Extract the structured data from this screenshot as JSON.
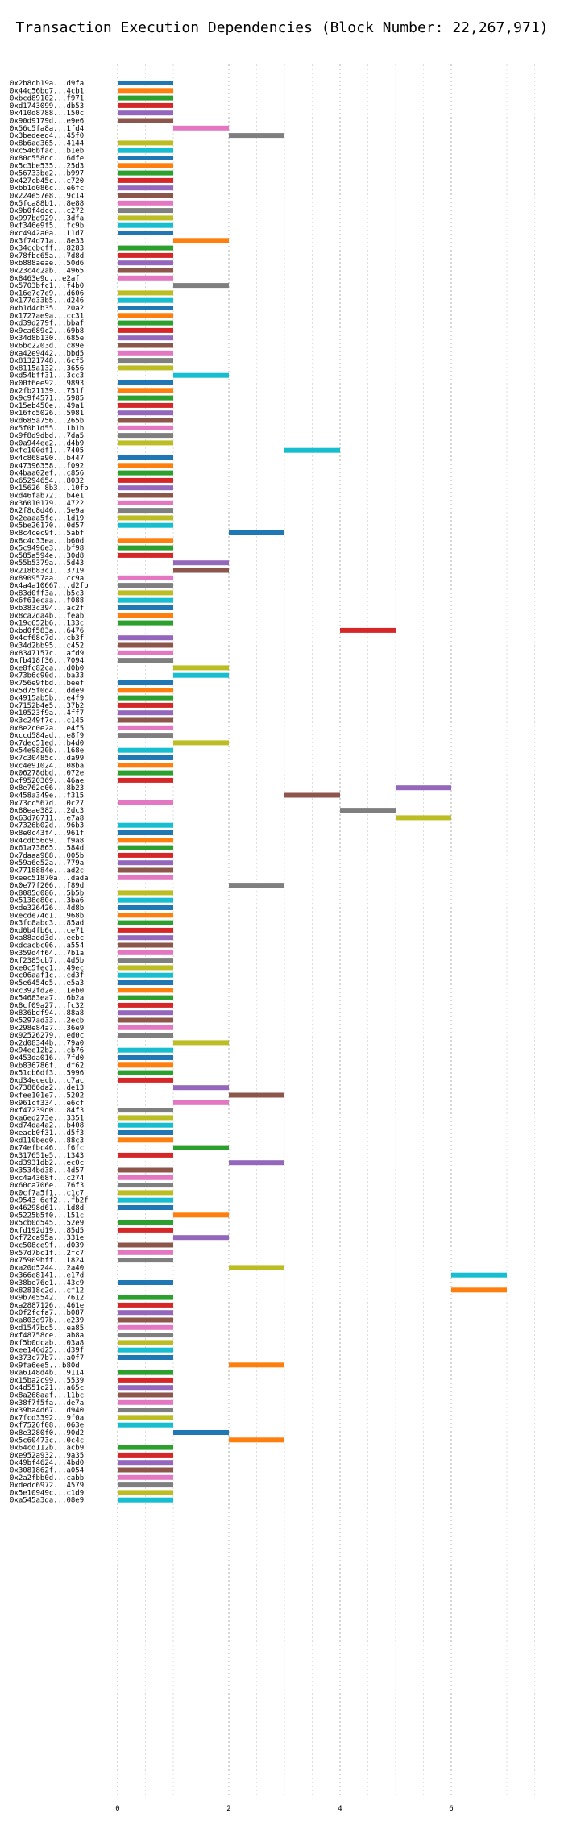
{
  "chart_data": {
    "type": "bar",
    "orientation": "horizontal",
    "title": "Transaction Execution Dependencies (Block Number: 22,267,971)",
    "xlabel": "",
    "ylabel": "",
    "xlim": [
      0,
      7.5
    ],
    "xticks": [
      0,
      2,
      4,
      6
    ],
    "grid": true,
    "colors": [
      "#1f77b4",
      "#ff7f0e",
      "#2ca02c",
      "#d62728",
      "#9467bd",
      "#8c564b",
      "#e377c2",
      "#7f7f7f",
      "#bcbd22",
      "#17becf"
    ],
    "transactions": [
      {
        "label": "0x2b8cb19a...d9fa",
        "start": 0,
        "end": 1
      },
      {
        "label": "0x44c56bd7...4cb1",
        "start": 0,
        "end": 1
      },
      {
        "label": "0xbcd89102...f971",
        "start": 0,
        "end": 1
      },
      {
        "label": "0xd1743099...db53",
        "start": 0,
        "end": 1
      },
      {
        "label": "0x410d8788...150c",
        "start": 0,
        "end": 1
      },
      {
        "label": "0x90d9179d...e9e6",
        "start": 0,
        "end": 1
      },
      {
        "label": "0x56c5fa8a...1fd4",
        "start": 1,
        "end": 2
      },
      {
        "label": "0x3bedeed4...45f0",
        "start": 2,
        "end": 3
      },
      {
        "label": "0x8b6ad365...4144",
        "start": 0,
        "end": 1
      },
      {
        "label": "0xc546bfac...b1eb",
        "start": 0,
        "end": 1
      },
      {
        "label": "0x80c558dc...6dfe",
        "start": 0,
        "end": 1
      },
      {
        "label": "0x5c3be535...25d3",
        "start": 0,
        "end": 1
      },
      {
        "label": "0x56733be2...b997",
        "start": 0,
        "end": 1
      },
      {
        "label": "0x427cb45c...c720",
        "start": 0,
        "end": 1
      },
      {
        "label": "0xbb1d086c...e6fc",
        "start": 0,
        "end": 1
      },
      {
        "label": "0x224e57e8...9c14",
        "start": 0,
        "end": 1
      },
      {
        "label": "0x5fca88b1...8e88",
        "start": 0,
        "end": 1
      },
      {
        "label": "0x9b0f4dcc...c272",
        "start": 0,
        "end": 1
      },
      {
        "label": "0x997bd929...3dfa",
        "start": 0,
        "end": 1
      },
      {
        "label": "0xf346e9f5...fc9b",
        "start": 0,
        "end": 1
      },
      {
        "label": "0xc4942a0a...11d7",
        "start": 0,
        "end": 1
      },
      {
        "label": "0x3f74d71a...8e33",
        "start": 1,
        "end": 2
      },
      {
        "label": "0x34ccbcff...8283",
        "start": 0,
        "end": 1
      },
      {
        "label": "0x78fbc65a...7d8d",
        "start": 0,
        "end": 1
      },
      {
        "label": "0xb888aeae...50d6",
        "start": 0,
        "end": 1
      },
      {
        "label": "0x23c4c2ab...4965",
        "start": 0,
        "end": 1
      },
      {
        "label": "0x8463e9d...e2af",
        "start": 0,
        "end": 1
      },
      {
        "label": "0x5703bfc1...f4b0",
        "start": 1,
        "end": 2
      },
      {
        "label": "0x16e7c7e9...d606",
        "start": 0,
        "end": 1
      },
      {
        "label": "0x177d33b5...d246",
        "start": 0,
        "end": 1
      },
      {
        "label": "0xb1d4cb35...20a2",
        "start": 0,
        "end": 1
      },
      {
        "label": "0x1727ae9a...cc31",
        "start": 0,
        "end": 1
      },
      {
        "label": "0xd39d279f...bbaf",
        "start": 0,
        "end": 1
      },
      {
        "label": "0x9ca689c2...69b8",
        "start": 0,
        "end": 1
      },
      {
        "label": "0x34d8b130...685e",
        "start": 0,
        "end": 1
      },
      {
        "label": "0x6bc2203d...c89e",
        "start": 0,
        "end": 1
      },
      {
        "label": "0xa42e9442...bbd5",
        "start": 0,
        "end": 1
      },
      {
        "label": "0x81321748...6cf5",
        "start": 0,
        "end": 1
      },
      {
        "label": "0x8115a132...3656",
        "start": 0,
        "end": 1
      },
      {
        "label": "0xd54bff31...3cc3",
        "start": 1,
        "end": 2
      },
      {
        "label": "0x00f6ee92...9893",
        "start": 0,
        "end": 1
      },
      {
        "label": "0x2fb21139...751f",
        "start": 0,
        "end": 1
      },
      {
        "label": "0x9c9f4571...5985",
        "start": 0,
        "end": 1
      },
      {
        "label": "0x15eb450e...49a1",
        "start": 0,
        "end": 1
      },
      {
        "label": "0x16fc5026...5981",
        "start": 0,
        "end": 1
      },
      {
        "label": "0xd685a756...265b",
        "start": 0,
        "end": 1
      },
      {
        "label": "0x5f0b1d55...1b1b",
        "start": 0,
        "end": 1
      },
      {
        "label": "0x9f8d9dbd...7da5",
        "start": 0,
        "end": 1
      },
      {
        "label": "0x0a944ee2...d4b9",
        "start": 0,
        "end": 1
      },
      {
        "label": "0xfc100df1...7405",
        "start": 3,
        "end": 4
      },
      {
        "label": "0x4c868a90...b447",
        "start": 0,
        "end": 1
      },
      {
        "label": "0x47396358...f092",
        "start": 0,
        "end": 1
      },
      {
        "label": "0x4baa02ef...c856",
        "start": 0,
        "end": 1
      },
      {
        "label": "0x65294654...8032",
        "start": 0,
        "end": 1
      },
      {
        "label": "0x15626 8b3...10fb",
        "start": 0,
        "end": 1
      },
      {
        "label": "0xd46fab72...b4e1",
        "start": 0,
        "end": 1
      },
      {
        "label": "0x36010179...4722",
        "start": 0,
        "end": 1
      },
      {
        "label": "0x2f8c8d46...5e9a",
        "start": 0,
        "end": 1
      },
      {
        "label": "0x2eaaa5fc...1d19",
        "start": 0,
        "end": 1
      },
      {
        "label": "0x5be26170...0d57",
        "start": 0,
        "end": 1
      },
      {
        "label": "0x8c4cec9f...5abf",
        "start": 2,
        "end": 3
      },
      {
        "label": "0x8c4c33ea...b60d",
        "start": 0,
        "end": 1
      },
      {
        "label": "0x5c9496e3...bf98",
        "start": 0,
        "end": 1
      },
      {
        "label": "0x585a594e...30d8",
        "start": 0,
        "end": 1
      },
      {
        "label": "0x55b5379a...5d43",
        "start": 1,
        "end": 2
      },
      {
        "label": "0x218b83c1...3719",
        "start": 1,
        "end": 2
      },
      {
        "label": "0x890957aa...cc9a",
        "start": 0,
        "end": 1
      },
      {
        "label": "0x4a4a10667...d2fb",
        "start": 0,
        "end": 1
      },
      {
        "label": "0x83d0ff3a...b5c3",
        "start": 0,
        "end": 1
      },
      {
        "label": "0x6f61ecaa...f088",
        "start": 0,
        "end": 1
      },
      {
        "label": "0xb383c394...ac2f",
        "start": 0,
        "end": 1
      },
      {
        "label": "0x8ca2da4b...feab",
        "start": 0,
        "end": 1
      },
      {
        "label": "0x19c652b6...133c",
        "start": 0,
        "end": 1
      },
      {
        "label": "0xbd0f583a...6476",
        "start": 4,
        "end": 5
      },
      {
        "label": "0x4cf68c7d...cb3f",
        "start": 0,
        "end": 1
      },
      {
        "label": "0x34d2bb95...c452",
        "start": 0,
        "end": 1
      },
      {
        "label": "0x8347157c...afd9",
        "start": 0,
        "end": 1
      },
      {
        "label": "0xfb418f36...7094",
        "start": 0,
        "end": 1
      },
      {
        "label": "0xe8fc82ca...d0b0",
        "start": 1,
        "end": 2
      },
      {
        "label": "0x73b6c90d...ba33",
        "start": 1,
        "end": 2
      },
      {
        "label": "0x756e9fbd...beef",
        "start": 0,
        "end": 1
      },
      {
        "label": "0x5d75f0d4...dde9",
        "start": 0,
        "end": 1
      },
      {
        "label": "0x4915ab5b...e4f9",
        "start": 0,
        "end": 1
      },
      {
        "label": "0x7152b4e5...37b2",
        "start": 0,
        "end": 1
      },
      {
        "label": "0x10523f9a...4ff7",
        "start": 0,
        "end": 1
      },
      {
        "label": "0x3c249f7c...c145",
        "start": 0,
        "end": 1
      },
      {
        "label": "0x8e2c0e2a...e4f5",
        "start": 0,
        "end": 1
      },
      {
        "label": "0xccd584ad...e8f9",
        "start": 0,
        "end": 1
      },
      {
        "label": "0x7dec51ed...b4d0",
        "start": 1,
        "end": 2
      },
      {
        "label": "0x54e9820b...168e",
        "start": 0,
        "end": 1
      },
      {
        "label": "0x7c30485c...da99",
        "start": 0,
        "end": 1
      },
      {
        "label": "0xc4e91024...08ba",
        "start": 0,
        "end": 1
      },
      {
        "label": "0x06278dbd...072e",
        "start": 0,
        "end": 1
      },
      {
        "label": "0xf9520369...46ae",
        "start": 0,
        "end": 1
      },
      {
        "label": "0x8e762e06...8b23",
        "start": 5,
        "end": 6
      },
      {
        "label": "0x458a349e...f315",
        "start": 3,
        "end": 4
      },
      {
        "label": "0x73cc567d...0c27",
        "start": 0,
        "end": 1
      },
      {
        "label": "0x88eae382...2dc3",
        "start": 4,
        "end": 5
      },
      {
        "label": "0x63d76711...e7a8",
        "start": 5,
        "end": 6
      },
      {
        "label": "0x7326b02d...96b3",
        "start": 0,
        "end": 1
      },
      {
        "label": "0x8e0c43f4...961f",
        "start": 0,
        "end": 1
      },
      {
        "label": "0x4cdb56d9...f9a8",
        "start": 0,
        "end": 1
      },
      {
        "label": "0x61a73865...584d",
        "start": 0,
        "end": 1
      },
      {
        "label": "0x7daaa988...005b",
        "start": 0,
        "end": 1
      },
      {
        "label": "0x59a6e52a...779a",
        "start": 0,
        "end": 1
      },
      {
        "label": "0x7718884e...ad2c",
        "start": 0,
        "end": 1
      },
      {
        "label": "0xeec51870a...dada",
        "start": 0,
        "end": 1
      },
      {
        "label": "0x0e77f206...f89d",
        "start": 2,
        "end": 3
      },
      {
        "label": "0x8085d086...5b5b",
        "start": 0,
        "end": 1
      },
      {
        "label": "0x5138e80c...3ba6",
        "start": 0,
        "end": 1
      },
      {
        "label": "0xde326426...4d8b",
        "start": 0,
        "end": 1
      },
      {
        "label": "0xecde74d1...968b",
        "start": 0,
        "end": 1
      },
      {
        "label": "0x3fc8abc3...85ad",
        "start": 0,
        "end": 1
      },
      {
        "label": "0xd0b4fb6c...ce71",
        "start": 0,
        "end": 1
      },
      {
        "label": "0xa88add3d...eebc",
        "start": 0,
        "end": 1
      },
      {
        "label": "0xdcacbc06...a554",
        "start": 0,
        "end": 1
      },
      {
        "label": "0x359d4f64...7b1a",
        "start": 0,
        "end": 1
      },
      {
        "label": "0xf2385cb7...4d5b",
        "start": 0,
        "end": 1
      },
      {
        "label": "0xe0c5fec1...49ec",
        "start": 0,
        "end": 1
      },
      {
        "label": "0xc06aaf1c...cd3f",
        "start": 0,
        "end": 1
      },
      {
        "label": "0x5e6454d5...e5a3",
        "start": 0,
        "end": 1
      },
      {
        "label": "0xc392fd2e...1eb0",
        "start": 0,
        "end": 1
      },
      {
        "label": "0x54683ea7...6b2a",
        "start": 0,
        "end": 1
      },
      {
        "label": "0x8cf09a27...fc32",
        "start": 0,
        "end": 1
      },
      {
        "label": "0x836bdf94...88a8",
        "start": 0,
        "end": 1
      },
      {
        "label": "0x5297ad33...2ecb",
        "start": 0,
        "end": 1
      },
      {
        "label": "0x298e84a7...36e9",
        "start": 0,
        "end": 1
      },
      {
        "label": "0x92526279...ed0c",
        "start": 0,
        "end": 1
      },
      {
        "label": "0x2d08344b...79a0",
        "start": 1,
        "end": 2
      },
      {
        "label": "0x94ee12b2...cb76",
        "start": 0,
        "end": 1
      },
      {
        "label": "0x453da016...7fd0",
        "start": 0,
        "end": 1
      },
      {
        "label": "0xb836786f...df62",
        "start": 0,
        "end": 1
      },
      {
        "label": "0x51cb6df3...5996",
        "start": 0,
        "end": 1
      },
      {
        "label": "0xd34ececb...c7ac",
        "start": 0,
        "end": 1
      },
      {
        "label": "0x73866da2...de13",
        "start": 1,
        "end": 2
      },
      {
        "label": "0xfee101e7...5202",
        "start": 2,
        "end": 3
      },
      {
        "label": "0x961cf334...e6cf",
        "start": 1,
        "end": 2
      },
      {
        "label": "0xf47239d0...84f3",
        "start": 0,
        "end": 1
      },
      {
        "label": "0xa6ed273e...3351",
        "start": 0,
        "end": 1
      },
      {
        "label": "0xd74da4a2...b408",
        "start": 0,
        "end": 1
      },
      {
        "label": "0xeacb0f31...d5f3",
        "start": 0,
        "end": 1
      },
      {
        "label": "0xd110bed0...88c3",
        "start": 0,
        "end": 1
      },
      {
        "label": "0x74efbc46...f6fc",
        "start": 1,
        "end": 2
      },
      {
        "label": "0x317651e5...1343",
        "start": 0,
        "end": 1
      },
      {
        "label": "0xd3931db2...ec0c",
        "start": 2,
        "end": 3
      },
      {
        "label": "0x3534bd38...4d57",
        "start": 0,
        "end": 1
      },
      {
        "label": "0xc4a4368f...c274",
        "start": 0,
        "end": 1
      },
      {
        "label": "0x60ca706e...76f3",
        "start": 0,
        "end": 1
      },
      {
        "label": "0x0cf7a5f1...c1c7",
        "start": 0,
        "end": 1
      },
      {
        "label": "0x9543 6ef2...fb2f",
        "start": 0,
        "end": 1
      },
      {
        "label": "0x46298d61...1d8d",
        "start": 0,
        "end": 1
      },
      {
        "label": "0x5225b5f0...151c",
        "start": 1,
        "end": 2
      },
      {
        "label": "0x5cb0d545...52e9",
        "start": 0,
        "end": 1
      },
      {
        "label": "0xfd192d19...85d5",
        "start": 0,
        "end": 1
      },
      {
        "label": "0xf72ca95a...331e",
        "start": 1,
        "end": 2
      },
      {
        "label": "0xc508ce9f...d039",
        "start": 0,
        "end": 1
      },
      {
        "label": "0x57d7bc1f...2fc7",
        "start": 0,
        "end": 1
      },
      {
        "label": "0x75909bff...1824",
        "start": 0,
        "end": 1
      },
      {
        "label": "0xa20d5244...2a40",
        "start": 2,
        "end": 3
      },
      {
        "label": "0x366e8141...e17d",
        "start": 6,
        "end": 7
      },
      {
        "label": "0x38be76e1...43c9",
        "start": 0,
        "end": 1
      },
      {
        "label": "0x82818c2d...cf12",
        "start": 6,
        "end": 7
      },
      {
        "label": "0x9b7e5542...7612",
        "start": 0,
        "end": 1
      },
      {
        "label": "0xa2887126...461e",
        "start": 0,
        "end": 1
      },
      {
        "label": "0x0f2fcfa7...b087",
        "start": 0,
        "end": 1
      },
      {
        "label": "0xa803d97b...e239",
        "start": 0,
        "end": 1
      },
      {
        "label": "0xd1547bd5...ea85",
        "start": 0,
        "end": 1
      },
      {
        "label": "0xf48758ce...ab8a",
        "start": 0,
        "end": 1
      },
      {
        "label": "0xf5b0dcab...03a8",
        "start": 0,
        "end": 1
      },
      {
        "label": "0xee146d25...d39f",
        "start": 0,
        "end": 1
      },
      {
        "label": "0x373c77b7...a0f7",
        "start": 0,
        "end": 1
      },
      {
        "label": "0x9fa6ee5...b80d",
        "start": 2,
        "end": 3
      },
      {
        "label": "0xa6148d4b...9114",
        "start": 0,
        "end": 1
      },
      {
        "label": "0x15ba2c99...5539",
        "start": 0,
        "end": 1
      },
      {
        "label": "0x4d551c21...a65c",
        "start": 0,
        "end": 1
      },
      {
        "label": "0x8a268aaf...11bc",
        "start": 0,
        "end": 1
      },
      {
        "label": "0x38f7f5fa...de7a",
        "start": 0,
        "end": 1
      },
      {
        "label": "0x39ba4d67...d940",
        "start": 0,
        "end": 1
      },
      {
        "label": "0x7fcd3392...9f0a",
        "start": 0,
        "end": 1
      },
      {
        "label": "0xf7526f08...063e",
        "start": 0,
        "end": 1
      },
      {
        "label": "0x8e3280f0...90d2",
        "start": 1,
        "end": 2
      },
      {
        "label": "0x5c60473c...0c4c",
        "start": 2,
        "end": 3
      },
      {
        "label": "0x64cd112b...acb9",
        "start": 0,
        "end": 1
      },
      {
        "label": "0xe952a932...9a35",
        "start": 0,
        "end": 1
      },
      {
        "label": "0x49bf4624...4bd0",
        "start": 0,
        "end": 1
      },
      {
        "label": "0x3081862f...a054",
        "start": 0,
        "end": 1
      },
      {
        "label": "0x2a2fbb0d...cabb",
        "start": 0,
        "end": 1
      },
      {
        "label": "0xdedc6972...4579",
        "start": 0,
        "end": 1
      },
      {
        "label": "0x5e10949c...c1d9",
        "start": 0,
        "end": 1
      },
      {
        "label": "0xa545a3da...08e9",
        "start": 0,
        "end": 1
      }
    ]
  }
}
